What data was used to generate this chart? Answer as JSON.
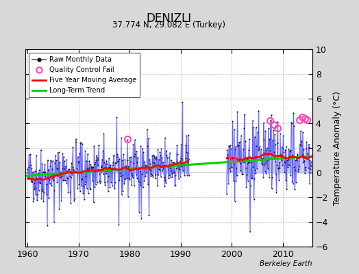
{
  "title": "DENIZLI",
  "subtitle": "37.774 N, 29.082 E (Turkey)",
  "ylabel": "Temperature Anomaly (°C)",
  "credit": "Berkeley Earth",
  "xlim": [
    1959.5,
    2015.8
  ],
  "ylim": [
    -6,
    10
  ],
  "yticks": [
    -6,
    -4,
    -2,
    0,
    2,
    4,
    6,
    8,
    10
  ],
  "xticks": [
    1960,
    1970,
    1980,
    1990,
    2000,
    2010
  ],
  "bg_color": "#d8d8d8",
  "plot_bg_color": "#ffffff",
  "raw_line_color": "#5555ff",
  "raw_fill_color": "#aaaaff",
  "raw_dot_color": "#111111",
  "qc_fail_color": "#ff44bb",
  "moving_avg_color": "#ff0000",
  "trend_color": "#00cc00",
  "seed": 42
}
